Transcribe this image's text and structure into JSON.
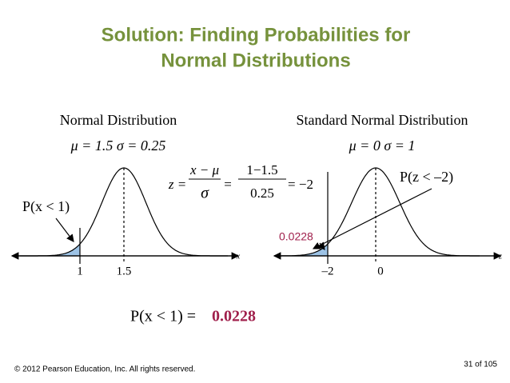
{
  "header": {
    "title_lines": [
      "Solution:  Finding Probabilities for",
      "Normal Distributions"
    ]
  },
  "left": {
    "heading": "Normal Distribution",
    "parameters": "μ = 1.5   σ = 0.25",
    "area_label": "P(x < 1)",
    "tick_labels": [
      "1",
      "1.5"
    ],
    "axis_label": "x"
  },
  "formula": {
    "lhs": "z =",
    "numerator": "x − μ",
    "denominator": "σ",
    "equals": "=",
    "num_value": "1−1.5",
    "den_value": "0.25",
    "result": "= −2"
  },
  "right": {
    "heading": "Standard Normal Distribution",
    "parameters": "μ = 0  σ = 1",
    "area_label": "P(z < –2)",
    "area_value": "0.0228",
    "tick_labels": [
      "–2",
      "0"
    ],
    "axis_label": "z"
  },
  "result": {
    "expression": "P(x < 1) =",
    "value": "0.0228"
  },
  "footer": {
    "copyright": "© 2012 Pearson Education, Inc. All rights reserved.",
    "page": "31 of 105"
  }
}
